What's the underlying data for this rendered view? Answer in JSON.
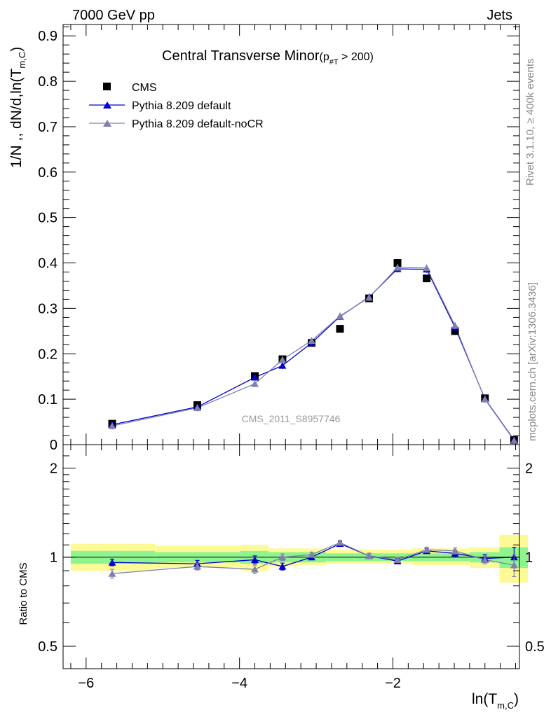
{
  "header": {
    "left": "7000 GeV pp",
    "right": "Jets"
  },
  "side_labels": {
    "rivet": "Rivet 3.1.10, ≥ 400k events",
    "mcplots": "mcplots.cern.ch [arXiv:1306.3436]"
  },
  "watermark": "CMS_2011_S8957746",
  "colors": {
    "cms": "#000000",
    "default": "#0000cc",
    "nocr": "#8080b0",
    "band_green": "#8ef58e",
    "band_yellow": "#fdfa96"
  },
  "chart_data": [
    {
      "type": "line",
      "title_main": "Central Transverse Minor",
      "title_paren_open": "(p",
      "title_sub": "#T",
      "title_rest": " > 200)",
      "ylabel": "1/N ,, dN/d,ln(T",
      "ylabel_sub": "m,C",
      "ylabel_close": ")",
      "xlim": [
        -6.3,
        -0.35
      ],
      "ylim": [
        0,
        0.925
      ],
      "yticks": [
        0,
        0.1,
        0.2,
        0.3,
        0.4,
        0.5,
        0.6,
        0.7,
        0.8,
        0.9
      ],
      "ytick_labels": [
        "0",
        "0.1",
        "0.2",
        "0.3",
        "0.4",
        "0.5",
        "0.6",
        "0.7",
        "0.8",
        "0.9"
      ],
      "legend": [
        {
          "label": "CMS",
          "marker": "square",
          "key": "cms"
        },
        {
          "label": "Pythia 8.209 default",
          "marker": "triangle",
          "key": "default"
        },
        {
          "label": "Pythia 8.209 default-noCR",
          "marker": "triangle",
          "key": "nocr"
        }
      ],
      "series": [
        {
          "name": "CMS",
          "key": "cms",
          "x": [
            -5.66,
            -4.55,
            -3.8,
            -3.44,
            -3.06,
            -2.69,
            -2.31,
            -1.94,
            -1.56,
            -1.19,
            -0.8,
            -0.42
          ],
          "y": [
            0.046,
            0.087,
            0.151,
            0.188,
            0.224,
            0.255,
            0.322,
            0.4,
            0.366,
            0.25,
            0.102,
            0.01
          ]
        },
        {
          "name": "Pythia 8.209 default",
          "key": "default",
          "x": [
            -5.66,
            -4.55,
            -3.8,
            -3.44,
            -3.06,
            -2.69,
            -2.31,
            -1.94,
            -1.56,
            -1.19,
            -0.8,
            -0.42
          ],
          "y": [
            0.044,
            0.083,
            0.148,
            0.174,
            0.224,
            0.282,
            0.325,
            0.387,
            0.386,
            0.258,
            0.101,
            0.01
          ]
        },
        {
          "name": "Pythia 8.209 default-noCR",
          "key": "nocr",
          "x": [
            -5.66,
            -4.55,
            -3.8,
            -3.44,
            -3.06,
            -2.69,
            -2.31,
            -1.94,
            -1.56,
            -1.19,
            -0.8,
            -0.42
          ],
          "y": [
            0.041,
            0.081,
            0.134,
            0.187,
            0.229,
            0.283,
            0.324,
            0.39,
            0.389,
            0.262,
            0.1,
            0.009
          ]
        }
      ]
    },
    {
      "type": "line",
      "ylabel": "Ratio to CMS",
      "xlabel": "ln(T",
      "xlabel_sub": "m,C",
      "xlabel_close": ")",
      "xlim": [
        -6.3,
        -0.35
      ],
      "xticks": [
        -6,
        -4,
        -2
      ],
      "xtick_labels": [
        "−6",
        "−4",
        "−2"
      ],
      "ylim": [
        0.42,
        2.4
      ],
      "ytick_labels_major": [
        {
          "value": 0.5,
          "label": "0.5"
        },
        {
          "value": 1,
          "label": "1"
        },
        {
          "value": 2,
          "label": "2"
        }
      ],
      "bin_edges": [
        -6.2,
        -5.1,
        -3.99,
        -3.62,
        -3.25,
        -2.87,
        -2.5,
        -2.12,
        -1.75,
        -1.37,
        -1.0,
        -0.61,
        -0.24
      ],
      "band_green": [
        [
          0.95,
          1.05
        ],
        [
          0.96,
          1.04
        ],
        [
          0.95,
          1.05
        ],
        [
          0.96,
          1.04
        ],
        [
          0.96,
          1.04
        ],
        [
          0.97,
          1.03
        ],
        [
          0.97,
          1.03
        ],
        [
          0.97,
          1.03
        ],
        [
          0.97,
          1.03
        ],
        [
          0.97,
          1.03
        ],
        [
          0.96,
          1.04
        ],
        [
          0.92,
          1.08
        ]
      ],
      "band_yellow": [
        [
          0.9,
          1.11
        ],
        [
          0.92,
          1.09
        ],
        [
          0.9,
          1.1
        ],
        [
          0.93,
          1.07
        ],
        [
          0.94,
          1.07
        ],
        [
          0.95,
          1.06
        ],
        [
          0.95,
          1.06
        ],
        [
          0.95,
          1.06
        ],
        [
          0.94,
          1.07
        ],
        [
          0.94,
          1.07
        ],
        [
          0.92,
          1.08
        ],
        [
          0.82,
          1.19
        ]
      ],
      "series": [
        {
          "name": "Pythia 8.209 default",
          "key": "default",
          "x": [
            -5.66,
            -4.55,
            -3.8,
            -3.44,
            -3.06,
            -2.69,
            -2.31,
            -1.94,
            -1.56,
            -1.19,
            -0.8,
            -0.42
          ],
          "y": [
            0.96,
            0.95,
            0.98,
            0.93,
            1.0,
            1.11,
            1.01,
            0.97,
            1.05,
            1.03,
            0.99,
            1.0
          ],
          "err": [
            0.025,
            0.025,
            0.03,
            0.025,
            0.02,
            0.02,
            0.02,
            0.02,
            0.02,
            0.025,
            0.03,
            0.08
          ]
        },
        {
          "name": "Pythia 8.209 default-noCR",
          "key": "nocr",
          "x": [
            -5.66,
            -4.55,
            -3.8,
            -3.44,
            -3.06,
            -2.69,
            -2.31,
            -1.94,
            -1.56,
            -1.19,
            -0.8,
            -0.42
          ],
          "y": [
            0.88,
            0.93,
            0.91,
            1.0,
            1.02,
            1.12,
            1.01,
            0.98,
            1.06,
            1.05,
            0.98,
            0.94
          ],
          "err": [
            0.03,
            0.025,
            0.03,
            0.025,
            0.02,
            0.02,
            0.02,
            0.02,
            0.02,
            0.025,
            0.03,
            0.08
          ]
        }
      ]
    }
  ]
}
